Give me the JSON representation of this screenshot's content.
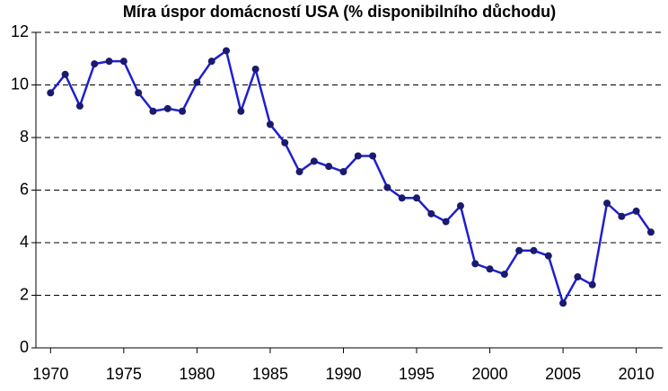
{
  "chart_data": {
    "type": "line",
    "title": "Míra úspor domácností USA (% disponibilního důchodu)",
    "x": [
      1970,
      1971,
      1972,
      1973,
      1974,
      1975,
      1976,
      1977,
      1978,
      1979,
      1980,
      1981,
      1982,
      1983,
      1984,
      1985,
      1986,
      1987,
      1988,
      1989,
      1990,
      1991,
      1992,
      1993,
      1994,
      1995,
      1996,
      1997,
      1998,
      1999,
      2000,
      2001,
      2002,
      2003,
      2004,
      2005,
      2006,
      2007,
      2008,
      2009,
      2010,
      2011
    ],
    "series": [
      {
        "color": "#1f1fd0",
        "values": [
          9.7,
          10.4,
          9.2,
          10.8,
          10.9,
          10.9,
          9.7,
          9.0,
          9.1,
          9.0,
          10.1,
          10.9,
          11.3,
          9.0,
          10.6,
          8.5,
          7.8,
          6.7,
          7.1,
          6.9,
          6.7,
          7.3,
          7.3,
          6.1,
          5.7,
          5.7,
          5.1,
          4.8,
          5.4,
          3.2,
          3.0,
          2.8,
          3.7,
          3.7,
          3.5,
          1.7,
          2.7,
          2.4,
          5.5,
          5.0,
          5.2,
          4.4
        ]
      }
    ],
    "xlim": [
      1969,
      2011.8
    ],
    "xticks": [
      1970,
      1975,
      1980,
      1985,
      1990,
      1995,
      2000,
      2005,
      2010
    ],
    "ylim": [
      0,
      12
    ],
    "yticks": [
      0,
      2,
      4,
      6,
      8,
      10,
      12
    ],
    "grid": true
  }
}
